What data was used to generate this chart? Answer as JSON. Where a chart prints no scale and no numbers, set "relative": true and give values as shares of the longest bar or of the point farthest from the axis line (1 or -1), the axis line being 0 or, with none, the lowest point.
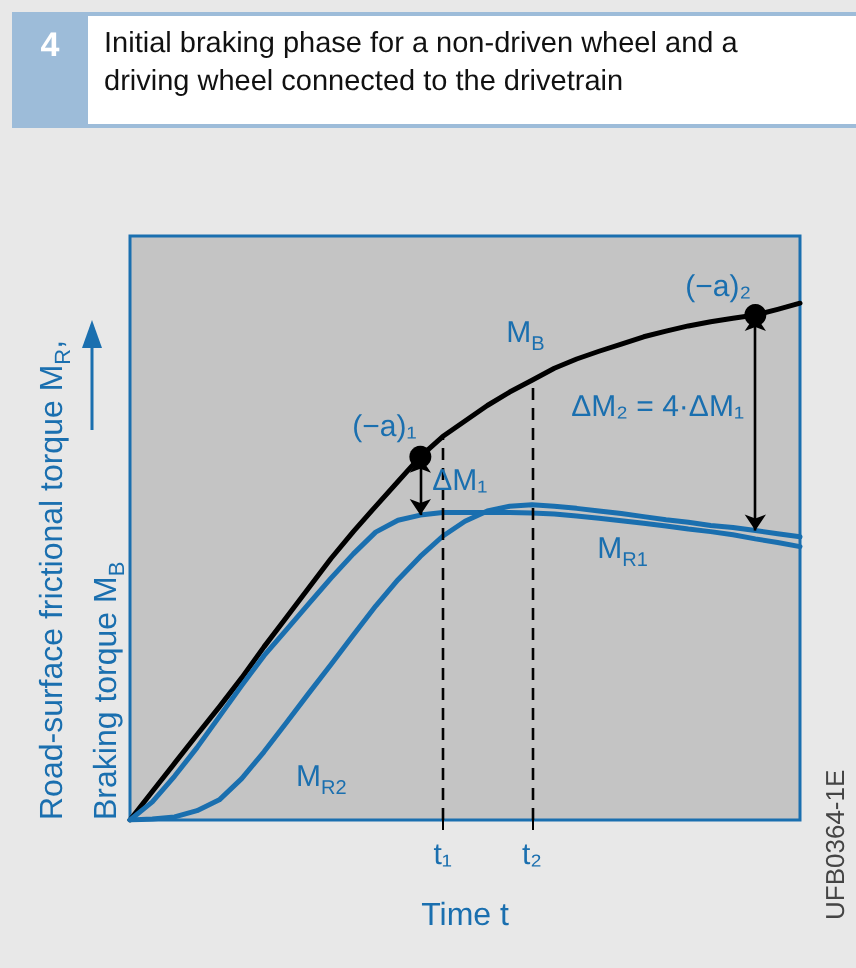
{
  "chart_data": {
    "type": "line",
    "title": "Initial braking phase for a non-driven wheel and a driving wheel connected to the drivetrain",
    "xlabel": "Time t",
    "ylabel": "Road-surface frictional torque M$_{R}$,\nBraking torque M$_{B}$",
    "relative": true,
    "marker": "none",
    "line_style": "solid",
    "grid": false,
    "legend": false,
    "categories": [
      null,
      null,
      null,
      null,
      null,
      null,
      null,
      null,
      null,
      null,
      null,
      null,
      null,
      null,
      "t₁",
      null,
      null,
      null,
      "t₂",
      null,
      null,
      null,
      null,
      null,
      null,
      null,
      null,
      null,
      null,
      null,
      null
    ],
    "series": [
      {
        "name": "M$_{B}$",
        "color": "#000000",
        "values": [
          0,
          0.055,
          0.11,
          0.165,
          0.219,
          0.275,
          0.335,
          0.392,
          0.449,
          0.506,
          0.558,
          0.607,
          0.655,
          0.703,
          0.742,
          0.772,
          0.802,
          0.828,
          0.851,
          0.874,
          0.892,
          0.907,
          0.921,
          0.935,
          0.946,
          0.956,
          0.964,
          0.971,
          0.977,
          0.988,
          1.0
        ]
      },
      {
        "name": "M$_{R1}$",
        "color": "#1a6faf",
        "values": [
          0,
          0.035,
          0.085,
          0.14,
          0.2,
          0.26,
          0.318,
          0.368,
          0.418,
          0.468,
          0.515,
          0.557,
          0.58,
          0.59,
          0.595,
          0.595,
          0.595,
          0.595,
          0.594,
          0.592,
          0.588,
          0.584,
          0.579,
          0.574,
          0.569,
          0.563,
          0.558,
          0.552,
          0.544,
          0.537,
          0.529
        ]
      },
      {
        "name": "M$_{R2}$",
        "color": "#1a6faf",
        "values": [
          0,
          0.002,
          0.006,
          0.018,
          0.039,
          0.08,
          0.132,
          0.188,
          0.245,
          0.301,
          0.358,
          0.414,
          0.465,
          0.51,
          0.549,
          0.578,
          0.598,
          0.607,
          0.61,
          0.607,
          0.603,
          0.598,
          0.593,
          0.587,
          0.581,
          0.576,
          0.57,
          0.566,
          0.56,
          0.554,
          0.548
        ]
      }
    ],
    "ref_lines": [
      {
        "axis": "x",
        "value": "t₁",
        "line_style": "dashed",
        "color": "#000000"
      },
      {
        "axis": "x",
        "value": "t₂",
        "line_style": "dashed",
        "color": "#000000"
      }
    ],
    "annotations": [
      "4",
      "UFB0364-1E",
      "(−a)₁",
      "(−a)₂",
      "ΔM₁",
      "ΔM₂ = 4·ΔM₁"
    ]
  }
}
